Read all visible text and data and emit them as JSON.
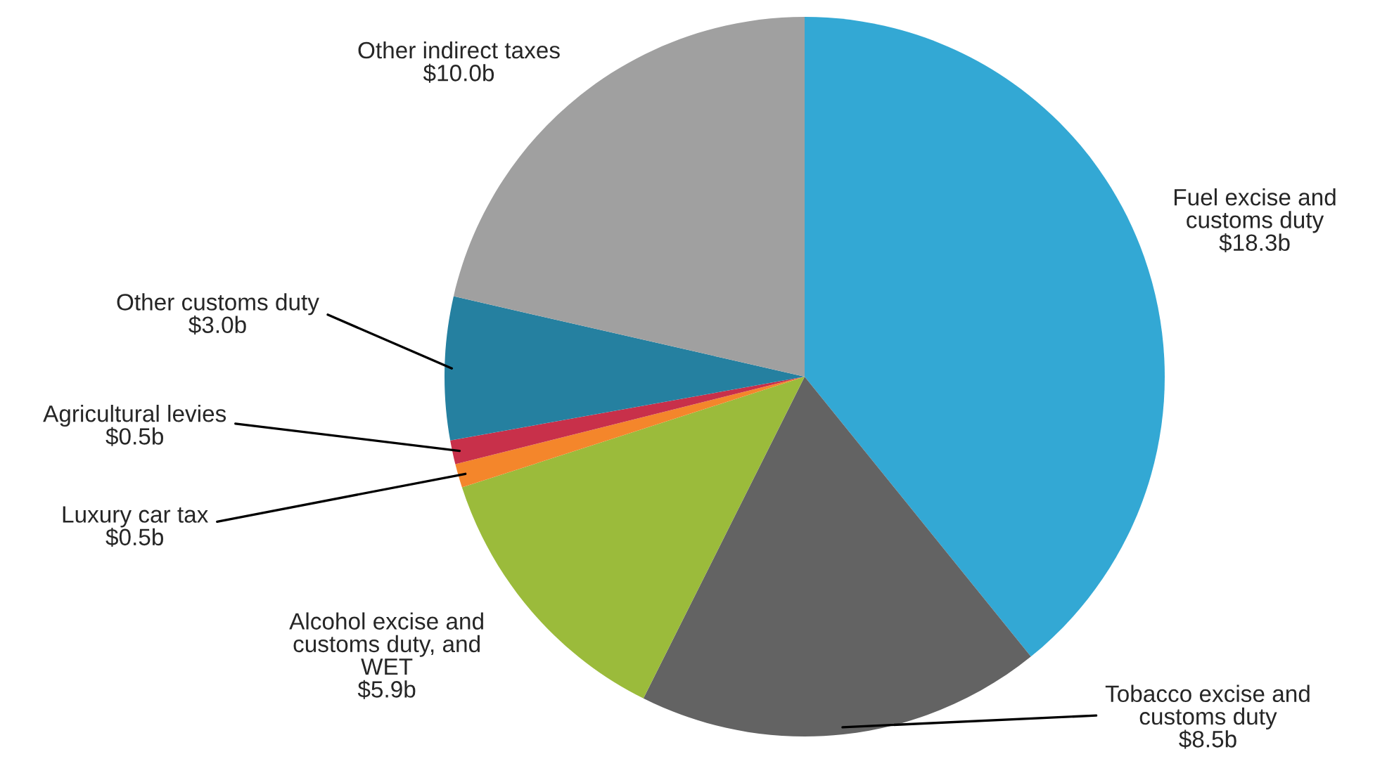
{
  "chart_data": {
    "type": "pie",
    "categories": [
      "Fuel excise and\ncustoms duty",
      "Tobacco excise and\ncustoms duty",
      "Alcohol excise and\ncustoms duty, and\nWET",
      "Luxury car tax",
      "Agricultural levies",
      "Other customs duty",
      "Other indirect taxes"
    ],
    "values": [
      18.3,
      8.5,
      5.9,
      0.5,
      0.5,
      3.0,
      10.0
    ],
    "value_labels": [
      "$18.3b",
      "$8.5b",
      "$5.9b",
      "$0.5b",
      "$0.5b",
      "$3.0b",
      "$10.0b"
    ],
    "colors": [
      "#33a8d4",
      "#636363",
      "#9bbb3b",
      "#f4862b",
      "#c8304a",
      "#2580a0",
      "#a0a0a0"
    ]
  }
}
